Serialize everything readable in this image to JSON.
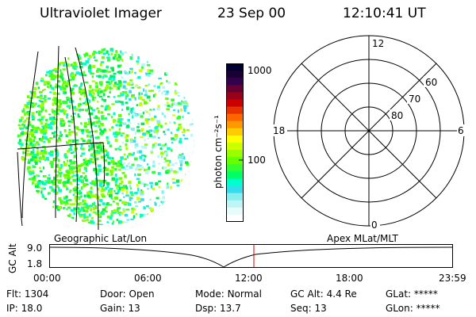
{
  "header": {
    "instrument": "Ultraviolet Imager",
    "date": "23 Sep 00",
    "time": "12:10:41 UT"
  },
  "colorbar": {
    "unit_label": "photon cm⁻²s⁻¹",
    "tick_labels": [
      "1000",
      "100"
    ],
    "colors": [
      "#000033",
      "#1a0033",
      "#33004d",
      "#660033",
      "#99001a",
      "#cc0000",
      "#e63300",
      "#ff6600",
      "#ff9900",
      "#ffcc00",
      "#ffff00",
      "#ccff00",
      "#99ff00",
      "#66ff00",
      "#33ff33",
      "#00ff66",
      "#00ffcc",
      "#33ddee",
      "#88eeee",
      "#bbf5f5",
      "#e8fbfb",
      "#ffffff"
    ]
  },
  "polar_plot": {
    "lat_labels": [
      "80",
      "70",
      "60"
    ],
    "mlt_labels": {
      "top": "12",
      "left": "18",
      "right": "6",
      "bottom": "0"
    }
  },
  "timeline": {
    "left_label": "Geographic Lat/Lon",
    "right_label": "Apex MLat/MLT",
    "y_axis_label": "GC Alt",
    "y_ticks": [
      "9.0",
      "1.8"
    ],
    "x_ticks": [
      "00:00",
      "06:00",
      "12:00",
      "18:00",
      "23:59"
    ],
    "current_time_fraction": 0.507
  },
  "status": {
    "row1": [
      {
        "label": "Flt:",
        "value": "1304"
      },
      {
        "label": "Door:",
        "value": "Open"
      },
      {
        "label": "Mode:",
        "value": "Normal"
      },
      {
        "label": "GC Alt:",
        "value": "4.4 Re"
      },
      {
        "label": "GLat:",
        "value": "*****"
      }
    ],
    "row2": [
      {
        "label": "IP:",
        "value": "18.0"
      },
      {
        "label": "Gain:",
        "value": "13"
      },
      {
        "label": "Dsp:",
        "value": "13.7"
      },
      {
        "label": "Seq:",
        "value": "13"
      },
      {
        "label": "GLon:",
        "value": "*****"
      }
    ]
  }
}
